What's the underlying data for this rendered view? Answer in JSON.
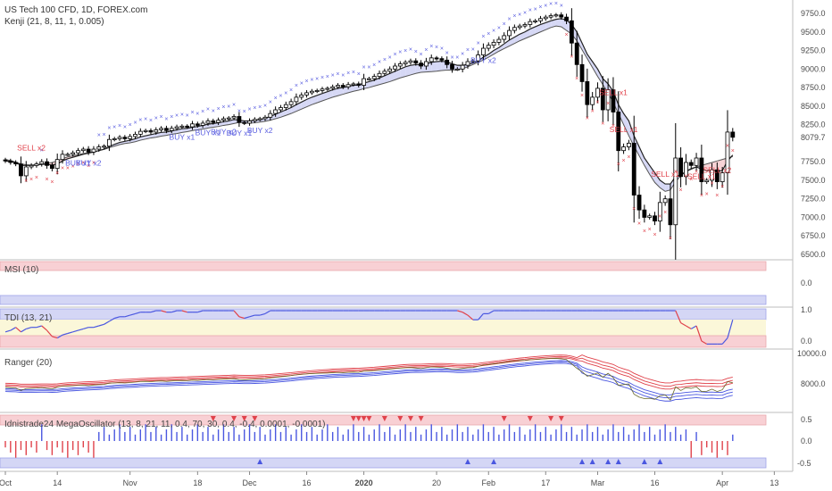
{
  "header": {
    "symbol_line": "US Tech 100 CFD, 1D, FOREX.com",
    "study_line": "Kenji (21, 8, 11, 1, 0.005)"
  },
  "chart_data": {
    "type": "candlestick",
    "title": "US Tech 100 CFD, 1D, FOREX.com",
    "y_ticks": [
      "9750.0",
      "9500.0",
      "9250.0",
      "9000.0",
      "8750.0",
      "8500.0",
      "8250.0",
      "7750.0",
      "7500.0",
      "7250.0",
      "7000.0",
      "6750.0",
      "6500.0"
    ],
    "ylim": [
      6500,
      9850
    ],
    "last_price": "8079.7",
    "x_ticks": [
      {
        "label": "Oct",
        "day": 0
      },
      {
        "label": "14",
        "day": 10
      },
      {
        "label": "Nov",
        "day": 24
      },
      {
        "label": "18",
        "day": 37
      },
      {
        "label": "Dec",
        "day": 47
      },
      {
        "label": "16",
        "day": 58
      },
      {
        "label": "2020",
        "day": 69
      },
      {
        "label": "20",
        "day": 83
      },
      {
        "label": "Feb",
        "day": 93
      },
      {
        "label": "17",
        "day": 104
      },
      {
        "label": "Mar",
        "day": 114
      },
      {
        "label": "16",
        "day": 125
      },
      {
        "label": "Apr",
        "day": 138
      },
      {
        "label": "13",
        "day": 148
      }
    ],
    "closes": [
      7760,
      7740,
      7720,
      7560,
      7680,
      7700,
      7720,
      7750,
      7700,
      7660,
      7780,
      7850,
      7850,
      7870,
      7900,
      7920,
      7880,
      7920,
      7950,
      7960,
      8050,
      8060,
      8080,
      8060,
      8090,
      8120,
      8160,
      8170,
      8150,
      8180,
      8200,
      8170,
      8200,
      8220,
      8230,
      8220,
      8260,
      8240,
      8270,
      8300,
      8280,
      8310,
      8330,
      8340,
      8360,
      8280,
      8270,
      8300,
      8320,
      8330,
      8350,
      8400,
      8450,
      8480,
      8520,
      8560,
      8620,
      8650,
      8680,
      8700,
      8710,
      8730,
      8740,
      8760,
      8780,
      8760,
      8790,
      8800,
      8780,
      8870,
      8870,
      8900,
      8940,
      8970,
      9000,
      9040,
      9070,
      9090,
      9110,
      9080,
      9040,
      9100,
      9150,
      9140,
      9120,
      9060,
      9000,
      9000,
      9050,
      9100,
      9110,
      9190,
      9280,
      9320,
      9360,
      9400,
      9450,
      9520,
      9560,
      9580,
      9600,
      9640,
      9650,
      9680,
      9700,
      9720,
      9730,
      9700,
      9650,
      9350,
      9060,
      8830,
      8520,
      8620,
      8740,
      8450,
      8720,
      8420,
      7900,
      7950,
      8000,
      7300,
      7100,
      7000,
      7020,
      6950,
      7200,
      7250,
      6900,
      7800,
      7550,
      7740,
      7700,
      7800,
      7480,
      7500,
      7640,
      7480,
      7600,
      8150,
      8080
    ],
    "stop_line": [
      7780,
      7765,
      7745,
      7720,
      7710,
      7705,
      7710,
      7715,
      7730,
      7740,
      7760,
      7790,
      7815,
      7830,
      7845,
      7860,
      7870,
      7885,
      7900,
      7915,
      7940,
      7960,
      7980,
      7995,
      8005,
      8020,
      8040,
      8055,
      8070,
      8080,
      8095,
      8105,
      8120,
      8130,
      8145,
      8155,
      8170,
      8180,
      8190,
      8205,
      8215,
      8225,
      8240,
      8250,
      8265,
      8280,
      8275,
      8270,
      8275,
      8285,
      8295,
      8310,
      8330,
      8350,
      8375,
      8400,
      8430,
      8460,
      8490,
      8520,
      8545,
      8570,
      8595,
      8620,
      8640,
      8660,
      8680,
      8700,
      8715,
      8735,
      8750,
      8770,
      8790,
      8810,
      8830,
      8855,
      8880,
      8900,
      8920,
      8940,
      8955,
      8960,
      8965,
      8970,
      8980,
      8985,
      8985,
      8990,
      9005,
      9030,
      9060,
      9090,
      9120,
      9160,
      9200,
      9240,
      9275,
      9310,
      9345,
      9380,
      9410,
      9440,
      9470,
      9500,
      9530,
      9560,
      9580,
      9570,
      9520,
      9470,
      9380,
      9260,
      9140,
      9020,
      8900,
      8790,
      8680,
      8550,
      8400,
      8250,
      8100,
      7960,
      7830,
      7700,
      7580,
      7470,
      7400,
      7350,
      7370,
      7480,
      7560,
      7620,
      7660,
      7680,
      7700,
      7720,
      7740,
      7760,
      7780,
      7800,
      7820
    ],
    "fast_line": [
      7760,
      7750,
      7740,
      7700,
      7700,
      7700,
      7705,
      7715,
      7715,
      7705,
      7720,
      7760,
      7790,
      7810,
      7830,
      7850,
      7865,
      7880,
      7900,
      7920,
      7955,
      7985,
      8010,
      8025,
      8040,
      8060,
      8085,
      8100,
      8115,
      8130,
      8145,
      8150,
      8165,
      8180,
      8195,
      8200,
      8215,
      8225,
      8240,
      8255,
      8265,
      8275,
      8290,
      8300,
      8320,
      8310,
      8300,
      8300,
      8310,
      8320,
      8335,
      8360,
      8390,
      8420,
      8450,
      8480,
      8520,
      8555,
      8590,
      8620,
      8645,
      8670,
      8695,
      8720,
      8740,
      8750,
      8765,
      8780,
      8785,
      8810,
      8830,
      8850,
      8880,
      8910,
      8940,
      8970,
      9000,
      9030,
      9050,
      9060,
      9055,
      9070,
      9090,
      9100,
      9105,
      9095,
      9070,
      9050,
      9050,
      9065,
      9080,
      9110,
      9160,
      9200,
      9250,
      9290,
      9340,
      9390,
      9430,
      9470,
      9500,
      9540,
      9570,
      9600,
      9625,
      9650,
      9670,
      9680,
      9660,
      9600,
      9500,
      9350,
      9200,
      9100,
      9000,
      8870,
      8800,
      8700,
      8520,
      8400,
      8300,
      8100,
      7950,
      7800,
      7700,
      7600,
      7500,
      7450,
      7450,
      7550,
      7570,
      7620,
      7650,
      7680,
      7650,
      7630,
      7640,
      7620,
      7630,
      7760,
      7840
    ],
    "buy_signals": [
      "BUY x1",
      "BUY x2",
      "BUY x1",
      "BUY x2",
      "BUY x2",
      "BUY x1",
      "BUY x1",
      "BUY x2"
    ],
    "sell_signals": [
      "SELL x2",
      "SELL x1",
      "SELL x1",
      "SELL x1",
      "SELL x2",
      "SELL x1"
    ]
  },
  "panels": {
    "msi": {
      "label": "MSI (10)",
      "ticks": [
        "0.0"
      ]
    },
    "tdi": {
      "label": "TDI (13, 21)",
      "ticks": [
        "1.0",
        "0.0"
      ]
    },
    "ranger": {
      "label": "Ranger (20)",
      "ticks": [
        "10000.0",
        "8000.0"
      ]
    },
    "mega": {
      "label": "Idnistrade24 MegaOscillator (13, 8, 21, 11, 0.4, 70, 30, 0.4, -0.4, 0.0001, -0.0001)",
      "ticks": [
        "0.5",
        "0.0",
        "-0.5"
      ]
    }
  },
  "colors": {
    "bull": "#ffffff",
    "bear": "#000000",
    "fast": "#222222",
    "stop": "#555555",
    "cloud_up": "#d6d8f5",
    "cloud_down": "#f7d3d6",
    "buy": "#5b5fe0",
    "sell": "#e0424b",
    "red_band": "#f8d0d4",
    "blue_band": "#d4d6f5",
    "yellow_band": "#fbf7d9",
    "ranger_red": "#e0424b",
    "ranger_blue": "#4a57e0"
  }
}
